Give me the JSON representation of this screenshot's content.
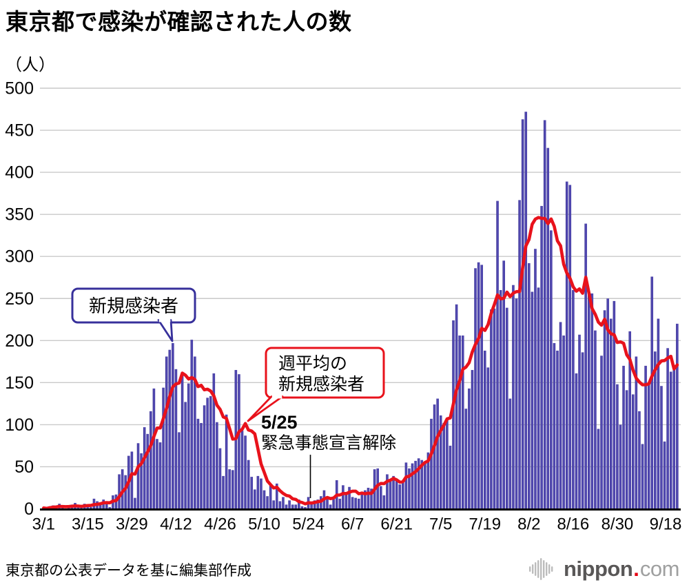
{
  "header": {
    "title": "東京都で感染が確認された人の数",
    "unit_label": "（人）"
  },
  "footer": {
    "source_note": "東京都の公表データを基に編集部作成"
  },
  "logo": {
    "name": "nippon.com",
    "icon": "soundwave-bars-icon",
    "text_main": "nippon",
    "text_dot": ".",
    "text_tld": "com",
    "dot_color": "#e60012"
  },
  "chart_data": {
    "type": "bar",
    "title": "東京都で感染が確認された人の数",
    "ylabel": "（人）",
    "xlabel": "",
    "ylim": [
      0,
      500
    ],
    "y_ticks": [
      0,
      50,
      100,
      150,
      200,
      250,
      300,
      350,
      400,
      450,
      500
    ],
    "grid": true,
    "x_start_date": "3/1",
    "x_end_date": "9/18",
    "x_ticks": [
      {
        "label": "3/1",
        "day": 0
      },
      {
        "label": "3/15",
        "day": 14
      },
      {
        "label": "3/29",
        "day": 28
      },
      {
        "label": "4/12",
        "day": 42
      },
      {
        "label": "4/26",
        "day": 56
      },
      {
        "label": "5/10",
        "day": 70
      },
      {
        "label": "5/24",
        "day": 84
      },
      {
        "label": "6/7",
        "day": 98
      },
      {
        "label": "6/21",
        "day": 112
      },
      {
        "label": "7/5",
        "day": 126
      },
      {
        "label": "7/19",
        "day": 140
      },
      {
        "label": "8/2",
        "day": 154
      },
      {
        "label": "8/16",
        "day": 168
      },
      {
        "label": "8/30",
        "day": 182
      },
      {
        "label": "9/18",
        "day": 201
      }
    ],
    "bar_color": "#3e34a1",
    "line_color": "#e8121b",
    "series": [
      {
        "name": "新規感染者",
        "type": "bar",
        "values": [
          1,
          0,
          3,
          4,
          3,
          6,
          2,
          0,
          1,
          5,
          7,
          2,
          3,
          6,
          3,
          2,
          12,
          9,
          7,
          11,
          7,
          2,
          16,
          17,
          41,
          47,
          40,
          63,
          68,
          13,
          78,
          66,
          97,
          89,
          116,
          143,
          83,
          79,
          144,
          181,
          189,
          197,
          166,
          91,
          161,
          127,
          149,
          201,
          181,
          107,
          102,
          123,
          132,
          134,
          161,
          103,
          72,
          39,
          112,
          47,
          46,
          165,
          160,
          93,
          87,
          58,
          38,
          23,
          39,
          36,
          22,
          15,
          28,
          10,
          30,
          9,
          14,
          5,
          10,
          5,
          5,
          11,
          3,
          2,
          14,
          8,
          10,
          11,
          15,
          22,
          14,
          5,
          13,
          34,
          12,
          28,
          20,
          26,
          14,
          13,
          12,
          18,
          22,
          25,
          24,
          47,
          48,
          27,
          16,
          41,
          35,
          39,
          35,
          29,
          31,
          55,
          48,
          54,
          57,
          60,
          58,
          54,
          67,
          107,
          124,
          131,
          111,
          102,
          106,
          75,
          224,
          243,
          206,
          206,
          119,
          143,
          165,
          286,
          293,
          290,
          188,
          168,
          237,
          238,
          366,
          260,
          295,
          239,
          131,
          266,
          250,
          367,
          463,
          472,
          292,
          258,
          309,
          263,
          360,
          462,
          429,
          331,
          197,
          188,
          222,
          206,
          389,
          385,
          260,
          161,
          207,
          186,
          339,
          258,
          256,
          212,
          95,
          182,
          236,
          250,
          226,
          247,
          148,
          100,
          170,
          141,
          211,
          136,
          181,
          116,
          77,
          170,
          149,
          276,
          187,
          226,
          146,
          80,
          191,
          163,
          171,
          220
        ]
      },
      {
        "name": "週平均の新規感染者",
        "type": "line",
        "derivation": "7日移動平均（新規感染者の週平均）"
      }
    ],
    "annotations": [
      {
        "id": "bar-series-label",
        "style": "blue-bubble",
        "lines": [
          "新規感染者"
        ]
      },
      {
        "id": "line-series-label",
        "style": "red-bubble",
        "lines": [
          "週平均の",
          "新規感染者"
        ]
      },
      {
        "id": "event-525",
        "date_label": "5/25",
        "lines": [
          "緊急事態宣言解除"
        ]
      }
    ]
  }
}
